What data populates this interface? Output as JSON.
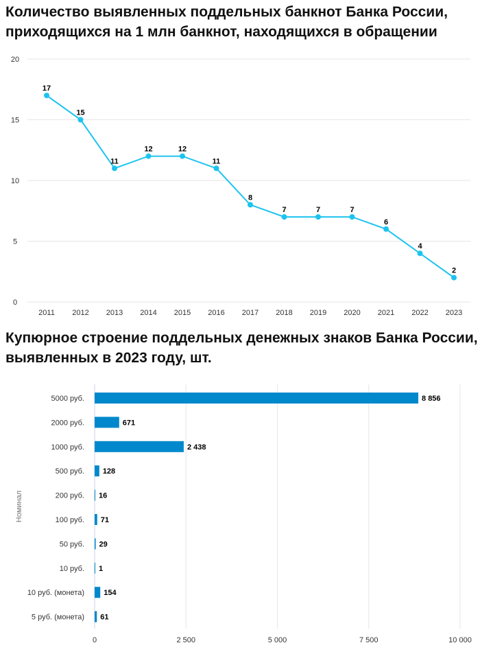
{
  "chart_data": [
    {
      "type": "line",
      "title": "Количество выявленных поддельных банкнот Банка России, приходящихся на 1 млн банкнот, находящихся в обращении",
      "x": [
        "2011",
        "2012",
        "2013",
        "2014",
        "2015",
        "2016",
        "2017",
        "2018",
        "2019",
        "2020",
        "2021",
        "2022",
        "2023"
      ],
      "values": [
        17,
        15,
        11,
        12,
        12,
        11,
        8,
        7,
        7,
        7,
        6,
        4,
        2
      ],
      "ylim": [
        0,
        20
      ],
      "yticks": [
        "0",
        "5",
        "10",
        "15",
        "20"
      ],
      "color": "#1cc3ef",
      "grid": true
    },
    {
      "type": "bar",
      "orientation": "horizontal",
      "title": "Купюрное строение поддельных денежных знаков Банка России, выявленных в 2023 году, шт.",
      "ylabel": "Номинал",
      "categories": [
        "5000 руб.",
        "2000 руб.",
        "1000 руб.",
        "500 руб.",
        "200 руб.",
        "100 руб.",
        "50 руб.",
        "10 руб.",
        "10 руб. (монета)",
        "5 руб. (монета)"
      ],
      "values": [
        8856,
        671,
        2438,
        128,
        16,
        71,
        29,
        1,
        154,
        61
      ],
      "value_labels": [
        "8 856",
        "671",
        "2 438",
        "128",
        "16",
        "71",
        "29",
        "1",
        "154",
        "61"
      ],
      "xlim": [
        0,
        10000
      ],
      "xticks": [
        "0",
        "2 500",
        "5 000",
        "7 500",
        "10 000"
      ],
      "color": "#0088cc",
      "grid": true
    }
  ]
}
